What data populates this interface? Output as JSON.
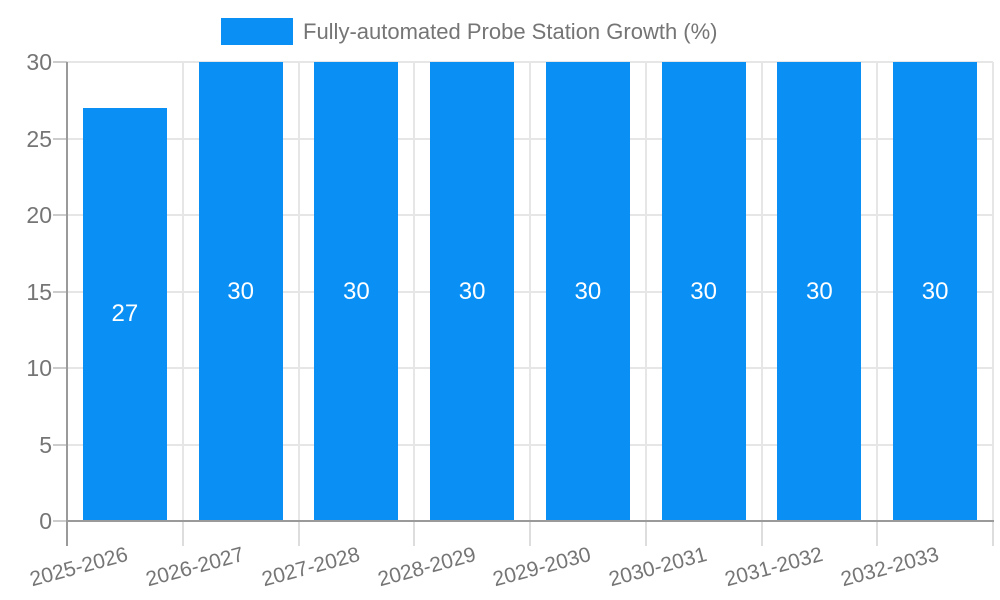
{
  "chart_data": {
    "type": "bar",
    "title": "Fully-automated Probe Station Growth (%)",
    "legend": {
      "position": "top",
      "label": "Fully-automated Probe Station Growth (%)"
    },
    "categories": [
      "2025-2026",
      "2026-2027",
      "2027-2028",
      "2028-2029",
      "2029-2030",
      "2030-2031",
      "2031-2032",
      "2032-2033"
    ],
    "series": [
      {
        "name": "Fully-automated Probe Station Growth (%)",
        "values": [
          27,
          30,
          30,
          30,
          30,
          30,
          30,
          30
        ]
      }
    ],
    "bar_value_labels": [
      "27",
      "30",
      "30",
      "30",
      "30",
      "30",
      "30",
      "30"
    ],
    "xlabel": "",
    "ylabel": "",
    "ylim": [
      0,
      30
    ],
    "yticks": [
      0,
      5,
      10,
      15,
      20,
      25,
      30
    ],
    "grid": true,
    "x_label_rotation_deg": -15,
    "colors": {
      "bar": "#0a90f5",
      "bar_label": "#ffffff",
      "gridline": "#e6e6e6",
      "axis_line": "#9a9a9a",
      "tick_text": "#757575"
    }
  }
}
